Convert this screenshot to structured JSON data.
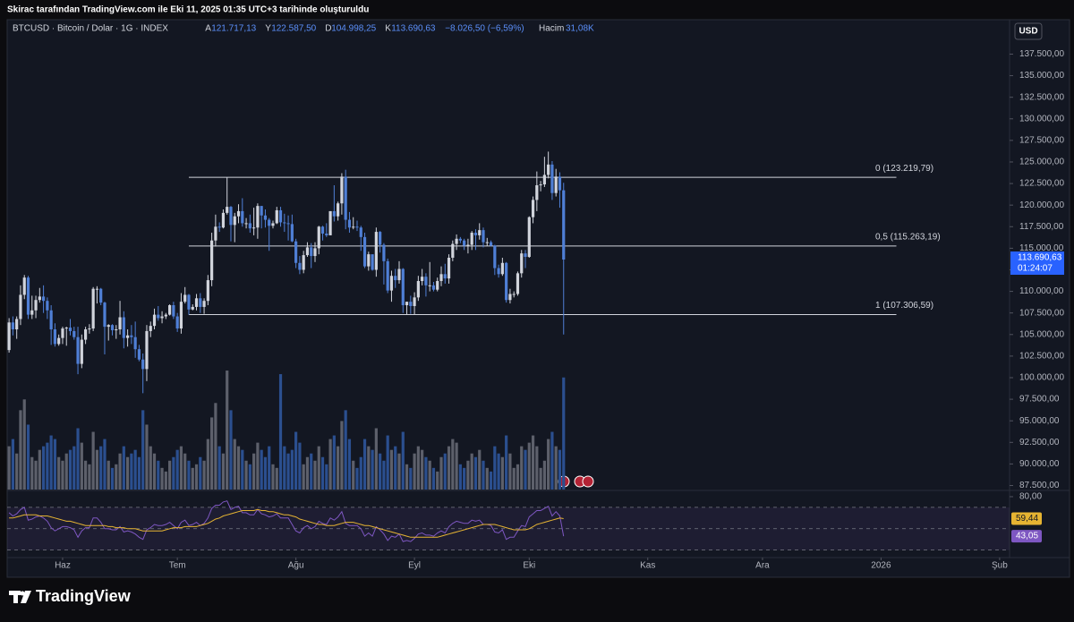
{
  "header": {
    "text": "Skirac tarafından TradingView.com ile Eki 11, 2025 01:35 UTC+3 tarihinde oluşturuldu"
  },
  "chart_data": {
    "type": "candlestick",
    "symbol": "BTCUSD · Bitcoin / Dolar · 1G · INDEX",
    "legend_values": [
      {
        "key": "A",
        "label": "121.717,13"
      },
      {
        "key": "Y",
        "label": "122.587,50"
      },
      {
        "key": "D",
        "label": "104.998,25"
      },
      {
        "key": "K",
        "label": "113.690,63"
      }
    ],
    "change": "−8.026,50 (−6,59%)",
    "volume_legend": {
      "key": "Hacim",
      "label": "31,08K"
    },
    "currency": "USD",
    "up_color": "#d1d4dc",
    "down_color": "#4f7fd6",
    "open": [
      103200,
      106400,
      105600,
      106800,
      109600,
      111600,
      107300,
      107800,
      109000,
      109400,
      108900,
      107800,
      105600,
      103900,
      104600,
      105700,
      105800,
      105400,
      104700,
      101600,
      104400,
      105600,
      105700,
      110300,
      110300,
      108700,
      105900,
      106100,
      105500,
      105600,
      107000,
      104600,
      104900,
      104700,
      103300,
      102100,
      101000,
      105400,
      106000,
      107300,
      106900,
      107100,
      107300,
      108400,
      107100,
      105700,
      108800,
      109600,
      107900,
      108200,
      109200,
      108200,
      108900,
      111300,
      115900,
      117500,
      117400,
      119100,
      119800,
      117700,
      118700,
      119300,
      117900,
      117900,
      117300,
      117400,
      119900,
      118800,
      118300,
      117600,
      117900,
      119400,
      118000,
      117900,
      117800,
      115800,
      113300,
      112500,
      114200,
      115100,
      114100,
      115000,
      117500,
      116700,
      116500,
      119300,
      118700,
      120200,
      123300,
      118300,
      117400,
      117500,
      117400,
      116300,
      112900,
      114300,
      112500,
      116900,
      115400,
      113500,
      110100,
      111800,
      111300,
      112600,
      108400,
      108800,
      108300,
      109300,
      111200,
      111700,
      110700,
      110700,
      110200,
      111200,
      112000,
      111500,
      113900,
      115500,
      116100,
      115900,
      115300,
      115400,
      116800,
      116500,
      117100,
      115700,
      115700,
      115300,
      112700,
      112000,
      113300,
      109000,
      109700,
      109700,
      112100,
      114400,
      114000,
      118600,
      120600,
      122300,
      122400,
      123500,
      124700,
      121400,
      123300,
      121717.13
    ],
    "high": [
      106900,
      107100,
      107100,
      110700,
      111900,
      111800,
      109500,
      109500,
      110400,
      110700,
      109300,
      108400,
      106300,
      105000,
      105900,
      105900,
      106800,
      105900,
      105900,
      105000,
      105900,
      106200,
      110500,
      110600,
      110400,
      108800,
      106200,
      106200,
      106100,
      108900,
      107700,
      105600,
      106100,
      106500,
      103800,
      102800,
      106100,
      106500,
      108000,
      108300,
      107700,
      107500,
      108500,
      108800,
      107500,
      109800,
      110500,
      109700,
      108500,
      109700,
      109800,
      109200,
      111900,
      116800,
      118900,
      118000,
      119500,
      123200,
      119900,
      119100,
      120100,
      120800,
      118500,
      118900,
      119700,
      120200,
      119900,
      119500,
      118500,
      118200,
      119800,
      119800,
      119000,
      118800,
      118900,
      116100,
      114100,
      114700,
      115700,
      115600,
      115700,
      117600,
      117600,
      117900,
      119300,
      122300,
      120400,
      123700,
      124100,
      119200,
      118600,
      118200,
      117600,
      116800,
      114600,
      114300,
      117400,
      117000,
      115600,
      113800,
      112400,
      112600,
      113500,
      112700,
      108800,
      109500,
      109900,
      111800,
      112600,
      112100,
      113400,
      111100,
      111600,
      112900,
      113200,
      114300,
      115900,
      116600,
      116300,
      116100,
      116100,
      117000,
      117200,
      117900,
      117400,
      116200,
      115900,
      115400,
      113100,
      113900,
      113400,
      110300,
      110000,
      112300,
      114800,
      114800,
      118700,
      121000,
      123900,
      122800,
      125600,
      126200,
      125100,
      124200,
      123800,
      122587.5
    ],
    "low": [
      102900,
      104900,
      104500,
      106100,
      109100,
      106800,
      106800,
      106900,
      108700,
      107500,
      106800,
      103800,
      103600,
      103700,
      103900,
      103700,
      104900,
      104400,
      100400,
      101100,
      103900,
      105100,
      105400,
      108600,
      108400,
      102700,
      104300,
      104900,
      104500,
      105000,
      103400,
      103600,
      103900,
      102300,
      101900,
      98200,
      99600,
      104700,
      105600,
      106600,
      106300,
      106800,
      107200,
      106800,
      105300,
      105100,
      108600,
      107300,
      107800,
      107800,
      107500,
      107400,
      108400,
      110600,
      115200,
      116900,
      117300,
      118900,
      115800,
      115700,
      117900,
      117500,
      117300,
      116800,
      116500,
      116100,
      117300,
      117400,
      114700,
      117300,
      117800,
      117500,
      116900,
      115900,
      115700,
      112700,
      112000,
      112100,
      114000,
      112700,
      113400,
      114300,
      115900,
      116300,
      116500,
      118100,
      118200,
      118900,
      117200,
      116800,
      117200,
      117000,
      114700,
      112700,
      112400,
      112400,
      111700,
      114500,
      110800,
      109800,
      108800,
      110400,
      110900,
      107500,
      107300,
      107400,
      107300,
      108900,
      110700,
      109400,
      110000,
      110000,
      110000,
      110600,
      110900,
      110900,
      113500,
      114800,
      115600,
      114800,
      114400,
      114800,
      114800,
      116000,
      115100,
      115300,
      115200,
      111900,
      111600,
      111800,
      108700,
      108600,
      109300,
      109500,
      111600,
      112700,
      113900,
      117900,
      119300,
      121600,
      122100,
      123100,
      120600,
      121000,
      119700,
      104998.25
    ],
    "close": [
      106400,
      105600,
      106800,
      109600,
      111600,
      107300,
      107800,
      109000,
      109400,
      108900,
      107800,
      105600,
      103900,
      104600,
      105700,
      105800,
      105400,
      104700,
      101600,
      104400,
      105600,
      105700,
      110300,
      110300,
      108700,
      105900,
      106100,
      105500,
      105600,
      107000,
      104600,
      104900,
      104700,
      103300,
      102100,
      101000,
      105400,
      106000,
      107300,
      106900,
      107100,
      107300,
      108400,
      107100,
      105700,
      108800,
      109600,
      107900,
      108200,
      109200,
      108200,
      108900,
      111300,
      115900,
      117500,
      117400,
      119100,
      119800,
      117700,
      118700,
      119300,
      117900,
      117900,
      117300,
      117400,
      119900,
      118800,
      118300,
      117600,
      117900,
      119400,
      118000,
      117900,
      117800,
      115800,
      113300,
      112500,
      114200,
      115100,
      114100,
      115000,
      117500,
      116700,
      116500,
      119300,
      118700,
      120200,
      123300,
      118300,
      117400,
      117500,
      117400,
      116300,
      112900,
      114300,
      112500,
      116900,
      115400,
      113500,
      110100,
      111800,
      111300,
      112600,
      108400,
      108800,
      108300,
      109300,
      111200,
      111700,
      110700,
      110700,
      110200,
      111200,
      112000,
      111500,
      113900,
      115500,
      116100,
      115900,
      115300,
      115400,
      116800,
      116500,
      117100,
      115700,
      115700,
      115300,
      112700,
      112000,
      113300,
      109000,
      109700,
      109700,
      112100,
      114400,
      114000,
      118600,
      120600,
      122300,
      122400,
      123500,
      124700,
      121400,
      123300,
      121717.13,
      113690.63
    ],
    "xlim": [
      -0.5,
      261.6
    ],
    "xticks": [
      {
        "value": 14,
        "label": "Haz"
      },
      {
        "value": 44,
        "label": "Tem"
      },
      {
        "value": 75,
        "label": "Ağu"
      },
      {
        "value": 106,
        "label": "Eyl"
      },
      {
        "value": 136,
        "label": "Eki"
      },
      {
        "value": 167,
        "label": "Kas"
      },
      {
        "value": 197,
        "label": "Ara"
      },
      {
        "value": 228,
        "label": "2026"
      },
      {
        "value": 259,
        "label": "Şub"
      }
    ],
    "ylim": [
      86930,
      141490
    ],
    "yticks": [
      {
        "value": 87500,
        "label": "87.500,00"
      },
      {
        "value": 90000,
        "label": "90.000,00"
      },
      {
        "value": 92500,
        "label": "92.500,00"
      },
      {
        "value": 95000,
        "label": "95.000,00"
      },
      {
        "value": 97500,
        "label": "97.500,00"
      },
      {
        "value": 100000,
        "label": "100.000,00"
      },
      {
        "value": 102500,
        "label": "102.500,00"
      },
      {
        "value": 105000,
        "label": "105.000,00"
      },
      {
        "value": 107500,
        "label": "107.500,00"
      },
      {
        "value": 110000,
        "label": "110.000,00"
      },
      {
        "value": 112500,
        "label": "112.500,00"
      },
      {
        "value": 115000,
        "label": "115.000,00"
      },
      {
        "value": 117500,
        "label": "117.500,00"
      },
      {
        "value": 120000,
        "label": "120.000,00"
      },
      {
        "value": 122500,
        "label": "122.500,00"
      },
      {
        "value": 125000,
        "label": "125.000,00"
      },
      {
        "value": 127500,
        "label": "127.500,00"
      },
      {
        "value": 130000,
        "label": "130.000,00"
      },
      {
        "value": 132500,
        "label": "132.500,00"
      },
      {
        "value": 135000,
        "label": "135.000,00"
      },
      {
        "value": 137500,
        "label": "137.500,00"
      }
    ],
    "last_price": {
      "value": 113690.63,
      "label": "113.690,63",
      "countdown": "01:24:07",
      "color": "#2962ff"
    },
    "fib_levels": [
      {
        "value": 123219.79,
        "label": "0 (123.219,79)"
      },
      {
        "value": 115263.19,
        "label": "0,5 (115.263,19)"
      },
      {
        "value": 107306.59,
        "label": "1 (107.306,59)"
      }
    ],
    "fib_range": [
      47,
      232
    ],
    "volume": {
      "type": "bar",
      "vlim": [
        0,
        34
      ],
      "up_color": "#5d606b",
      "down_color": "#2b4f8f",
      "values": [
        12,
        14,
        10,
        22,
        25,
        18,
        9,
        8,
        11,
        12,
        13,
        15,
        14,
        9,
        8,
        10,
        11,
        12,
        17,
        13,
        8,
        7,
        16,
        11,
        12,
        14,
        8,
        6,
        7,
        10,
        12,
        9,
        10,
        11,
        9,
        22,
        18,
        12,
        10,
        8,
        6,
        5,
        8,
        9,
        11,
        12,
        10,
        8,
        6,
        7,
        9,
        8,
        14,
        20,
        24,
        12,
        10,
        33,
        22,
        14,
        12,
        11,
        8,
        7,
        10,
        13,
        11,
        9,
        12,
        7,
        6,
        32,
        12,
        10,
        11,
        16,
        13,
        7,
        9,
        10,
        8,
        12,
        9,
        7,
        14,
        15,
        12,
        19,
        22,
        14,
        8,
        6,
        9,
        14,
        12,
        11,
        17,
        10,
        8,
        15,
        11,
        12,
        10,
        16,
        7,
        6,
        10,
        12,
        11,
        9,
        8,
        6,
        5,
        9,
        10,
        12,
        14,
        13,
        7,
        6,
        8,
        10,
        9,
        11,
        8,
        6,
        5,
        12,
        10,
        9,
        15,
        10,
        6,
        7,
        12,
        11,
        13,
        15,
        12,
        6,
        8,
        14,
        16,
        12,
        11,
        31.08
      ]
    },
    "rsi": {
      "type": "line",
      "ylim": [
        23,
        85
      ],
      "yticks": [
        {
          "value": 80,
          "label": "80,00"
        }
      ],
      "bands": [
        70,
        50,
        30
      ],
      "series": [
        {
          "color": "#7e57c2",
          "last": {
            "value": 43.05,
            "label": "43,05"
          },
          "values": [
            65,
            62,
            64,
            68,
            70,
            58,
            59,
            61,
            62,
            60,
            57,
            51,
            48,
            50,
            52,
            52,
            51,
            49,
            42,
            48,
            51,
            51,
            60,
            60,
            56,
            50,
            50,
            49,
            49,
            52,
            47,
            48,
            47,
            45,
            42,
            40,
            49,
            51,
            54,
            53,
            53,
            54,
            56,
            53,
            50,
            56,
            58,
            53,
            54,
            56,
            53,
            55,
            60,
            69,
            72,
            72,
            75,
            76,
            68,
            70,
            71,
            65,
            65,
            63,
            63,
            68,
            64,
            63,
            61,
            62,
            64,
            60,
            60,
            60,
            54,
            48,
            46,
            51,
            53,
            50,
            52,
            57,
            55,
            54,
            60,
            58,
            61,
            66,
            55,
            53,
            53,
            53,
            50,
            43,
            46,
            43,
            52,
            49,
            45,
            39,
            43,
            42,
            45,
            38,
            39,
            38,
            41,
            45,
            46,
            44,
            44,
            43,
            46,
            48,
            46,
            52,
            55,
            57,
            56,
            55,
            55,
            58,
            57,
            58,
            54,
            54,
            53,
            47,
            46,
            49,
            40,
            42,
            42,
            48,
            53,
            52,
            61,
            64,
            67,
            67,
            69,
            71,
            62,
            66,
            62,
            43.05
          ]
        },
        {
          "color": "#e6b432",
          "last": {
            "value": 59.44,
            "label": "59,44"
          },
          "values": [
            60,
            60,
            61,
            62,
            63,
            63,
            63,
            63,
            62,
            62,
            62,
            61,
            60,
            59,
            58,
            57,
            57,
            56,
            55,
            54,
            53,
            53,
            53,
            53,
            53,
            53,
            52,
            52,
            51,
            51,
            51,
            50,
            50,
            50,
            49,
            48,
            48,
            48,
            48,
            48,
            48,
            49,
            50,
            51,
            51,
            51,
            52,
            52,
            52,
            52,
            53,
            54,
            55,
            57,
            59,
            60,
            62,
            63,
            64,
            65,
            66,
            67,
            67,
            67,
            67,
            68,
            67,
            67,
            66,
            66,
            65,
            64,
            63,
            63,
            62,
            61,
            59,
            58,
            57,
            56,
            55,
            54,
            54,
            53,
            53,
            53,
            54,
            55,
            56,
            56,
            56,
            55,
            54,
            53,
            53,
            52,
            51,
            50,
            49,
            48,
            47,
            46,
            45,
            44,
            43,
            42,
            42,
            42,
            42,
            42,
            42,
            42,
            42,
            43,
            44,
            45,
            46,
            47,
            48,
            49,
            50,
            51,
            52,
            53,
            54,
            54,
            54,
            54,
            53,
            52,
            51,
            50,
            49,
            49,
            49,
            49,
            50,
            52,
            54,
            55,
            56,
            57,
            58,
            59,
            60,
            59.44
          ]
        }
      ]
    }
  },
  "footer": {
    "brand": "TradingView"
  }
}
